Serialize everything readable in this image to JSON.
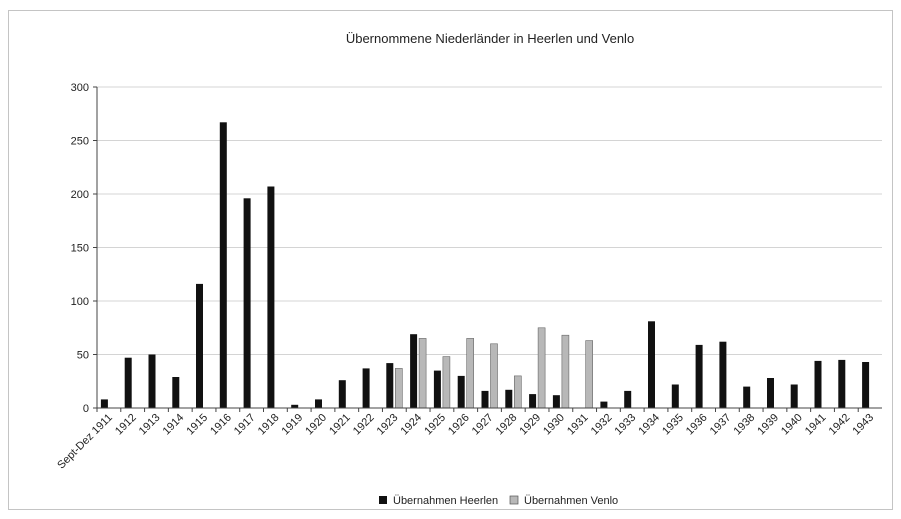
{
  "chart_data": {
    "type": "bar",
    "title": "Übernommene Niederländer in Heerlen und Venlo",
    "xlabel": "",
    "ylabel": "",
    "ylim": [
      0,
      300
    ],
    "yticks": [
      0,
      50,
      100,
      150,
      200,
      250,
      300
    ],
    "grid": true,
    "legend_position": "bottom",
    "categories": [
      "Sept-Dez 1911",
      "1912",
      "1913",
      "1914",
      "1915",
      "1916",
      "1917",
      "1918",
      "1919",
      "1920",
      "1921",
      "1922",
      "1923",
      "1924",
      "1925",
      "1926",
      "1927",
      "1928",
      "1929",
      "1930",
      "1931",
      "1932",
      "1933",
      "1934",
      "1935",
      "1936",
      "1937",
      "1938",
      "1939",
      "1940",
      "1941",
      "1942",
      "1943"
    ],
    "series": [
      {
        "name": "Übernahmen Heerlen",
        "color": "#111111",
        "values": [
          8,
          47,
          50,
          29,
          116,
          267,
          196,
          207,
          3,
          8,
          26,
          37,
          42,
          69,
          35,
          30,
          16,
          17,
          13,
          12,
          0,
          6,
          16,
          81,
          22,
          59,
          62,
          20,
          28,
          22,
          44,
          45,
          43
        ]
      },
      {
        "name": "Übernahmen Venlo",
        "color": "#b8b8b8",
        "values": [
          0,
          0,
          0,
          0,
          0,
          0,
          0,
          0,
          0,
          0,
          0,
          0,
          37,
          65,
          48,
          65,
          60,
          30,
          75,
          68,
          63,
          0,
          0,
          0,
          0,
          0,
          0,
          0,
          0,
          0,
          0,
          0,
          0
        ]
      }
    ]
  }
}
